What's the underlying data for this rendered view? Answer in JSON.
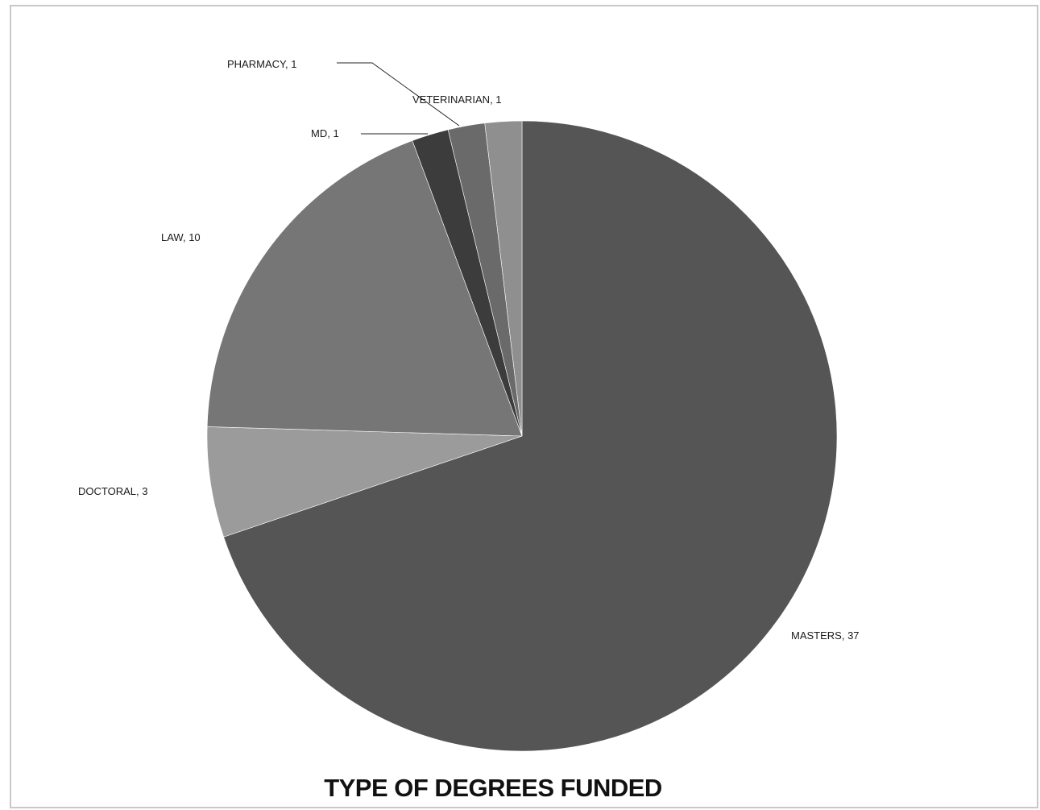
{
  "chart_data": {
    "type": "pie",
    "title": "TYPE OF DEGREES FUNDED",
    "slices": [
      {
        "label": "MASTERS",
        "value": 37,
        "display": "MASTERS, 37",
        "color": "#555555"
      },
      {
        "label": "DOCTORAL",
        "value": 3,
        "display": "DOCTORAL, 3",
        "color": "#9b9b9b"
      },
      {
        "label": "LAW",
        "value": 10,
        "display": "LAW, 10",
        "color": "#767676"
      },
      {
        "label": "MD",
        "value": 1,
        "display": "MD, 1",
        "color": "#3c3c3c"
      },
      {
        "label": "PHARMACY",
        "value": 1,
        "display": "PHARMACY, 1",
        "color": "#6a6a6a"
      },
      {
        "label": "VETERINARIAN",
        "value": 1,
        "display": "VETERINARIAN, 1",
        "color": "#8f8f8f"
      }
    ],
    "legend": "none"
  }
}
